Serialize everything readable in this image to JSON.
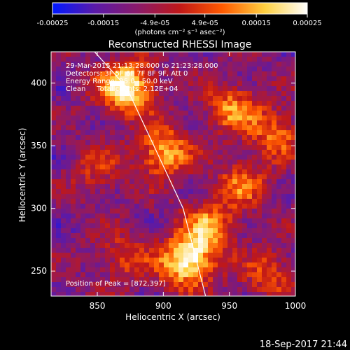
{
  "window": {
    "footer_timestamp": "18-Sep-2017 21:44"
  },
  "colorbar": {
    "ticks": [
      "-0.00025",
      "-0.00015",
      "-4.9e-05",
      "4.9e-05",
      "0.00015",
      "0.00025"
    ],
    "unit_label": "(photons cm⁻² s⁻¹ asec⁻²)",
    "range": [
      -0.00025,
      0.00025
    ],
    "colors": [
      "#0018ff",
      "#5a1aa8",
      "#8a1a6a",
      "#c01818",
      "#ff5a00",
      "#ffd040",
      "#ffffff"
    ]
  },
  "annotations": {
    "time_range": "29-Mar-2015 21:13:28.000 to 21:23:28.000",
    "detectors": "Detectors: 3F 5F 6F 7F 8F 9F, Att 0",
    "energy": "Energy Range: 25.0 - 50.0 keV",
    "clean": "Clean     Total counts: 2.12E+04",
    "peak": "Position of Peak = [872,397]"
  },
  "chart_data": {
    "type": "heatmap",
    "title": "Reconstructed RHESSI Image",
    "xlabel": "Heliocentric X (arcsec)",
    "ylabel": "Heliocentric Y (arcsec)",
    "xlim": [
      815,
      1000
    ],
    "ylim": [
      230,
      425
    ],
    "xticks": [
      850,
      900,
      950,
      1000
    ],
    "yticks": [
      250,
      300,
      350,
      400
    ],
    "peak_position": [
      872,
      397
    ],
    "limb_line": [
      [
        835,
        440
      ],
      [
        872,
        397
      ],
      [
        915,
        300
      ],
      [
        932,
        230
      ]
    ],
    "sources": [
      {
        "x": 872,
        "y": 397,
        "intensity": 1.0
      },
      {
        "x": 918,
        "y": 258,
        "intensity": 0.95
      },
      {
        "x": 900,
        "y": 345,
        "intensity": 0.7
      },
      {
        "x": 952,
        "y": 380,
        "intensity": 0.55
      },
      {
        "x": 985,
        "y": 360,
        "intensity": 0.5
      },
      {
        "x": 935,
        "y": 285,
        "intensity": 0.6
      },
      {
        "x": 980,
        "y": 248,
        "intensity": 0.4
      },
      {
        "x": 870,
        "y": 260,
        "intensity": 0.35
      },
      {
        "x": 960,
        "y": 320,
        "intensity": 0.45
      },
      {
        "x": 850,
        "y": 330,
        "intensity": 0.3
      }
    ]
  }
}
